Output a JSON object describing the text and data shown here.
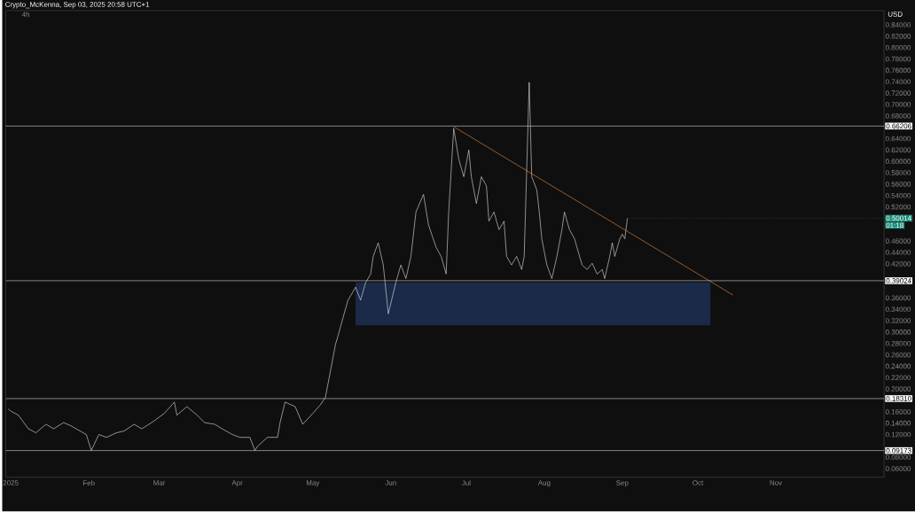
{
  "chart_data": {
    "type": "line",
    "title": "Crypto_McKenna, Sep 03, 2025 20:58 UTC+1",
    "subtitle": "4h",
    "ylabel": "USD",
    "xlim": [
      "2024-12-30",
      "2025-12-14"
    ],
    "xticks": [
      {
        "value": "2025-01-01",
        "label": "2025"
      },
      {
        "value": "2025-02-01",
        "label": "Feb"
      },
      {
        "value": "2025-03-01",
        "label": "Mar"
      },
      {
        "value": "2025-04-01",
        "label": "Apr"
      },
      {
        "value": "2025-05-01",
        "label": "May"
      },
      {
        "value": "2025-06-01",
        "label": "Jun"
      },
      {
        "value": "2025-07-01",
        "label": "Jul"
      },
      {
        "value": "2025-08-01",
        "label": "Aug"
      },
      {
        "value": "2025-09-01",
        "label": "Sep"
      },
      {
        "value": "2025-10-01",
        "label": "Oct"
      },
      {
        "value": "2025-11-01",
        "label": "Nov"
      }
    ],
    "ylim": [
      0.045,
      0.865
    ],
    "yticks": [
      {
        "value": 0.06,
        "label": "0.06000"
      },
      {
        "value": 0.08,
        "label": "0.08000"
      },
      {
        "value": 0.12,
        "label": "0.12000"
      },
      {
        "value": 0.14,
        "label": "0.14000"
      },
      {
        "value": 0.16,
        "label": "0.16000"
      },
      {
        "value": 0.2,
        "label": "0.20000"
      },
      {
        "value": 0.22,
        "label": "0.22000"
      },
      {
        "value": 0.24,
        "label": "0.24000"
      },
      {
        "value": 0.26,
        "label": "0.26000"
      },
      {
        "value": 0.28,
        "label": "0.28000"
      },
      {
        "value": 0.3,
        "label": "0.30000"
      },
      {
        "value": 0.32,
        "label": "0.32000"
      },
      {
        "value": 0.34,
        "label": "0.34000"
      },
      {
        "value": 0.36,
        "label": "0.36000"
      },
      {
        "value": 0.42,
        "label": "0.42000"
      },
      {
        "value": 0.44,
        "label": "0.44000"
      },
      {
        "value": 0.46,
        "label": "0.46000"
      },
      {
        "value": 0.52,
        "label": "0.52000"
      },
      {
        "value": 0.54,
        "label": "0.54000"
      },
      {
        "value": 0.56,
        "label": "0.56000"
      },
      {
        "value": 0.58,
        "label": "0.58000"
      },
      {
        "value": 0.6,
        "label": "0.60000"
      },
      {
        "value": 0.62,
        "label": "0.62000"
      },
      {
        "value": 0.64,
        "label": "0.64000"
      },
      {
        "value": 0.68,
        "label": "0.68000"
      },
      {
        "value": 0.7,
        "label": "0.70000"
      },
      {
        "value": 0.72,
        "label": "0.72000"
      },
      {
        "value": 0.74,
        "label": "0.74000"
      },
      {
        "value": 0.76,
        "label": "0.76000"
      },
      {
        "value": 0.78,
        "label": "0.78000"
      },
      {
        "value": 0.8,
        "label": "0.80000"
      },
      {
        "value": 0.82,
        "label": "0.82000"
      },
      {
        "value": 0.84,
        "label": "0.84000"
      }
    ],
    "ref_lines": [
      {
        "axis": "y",
        "value": 0.66206,
        "label": "0.66206",
        "color": "#d9d9d9"
      },
      {
        "axis": "y",
        "value": 0.39024,
        "label": "0.39024",
        "color": "#d9d9d9"
      },
      {
        "axis": "y",
        "value": 0.1831,
        "label": "0.18310",
        "color": "#d9d9d9"
      },
      {
        "axis": "y",
        "value": 0.09173,
        "label": "0.09173",
        "color": "#d9d9d9"
      }
    ],
    "annotations": [
      {
        "text": "0.50014",
        "x": "2025-09-03",
        "y": 0.50014
      },
      "01:18"
    ],
    "series": [
      {
        "type": "area",
        "color": "#1a2a48",
        "x": [
          "2025-05-18",
          "2025-10-06"
        ],
        "lower": [
          0.312,
          0.312
        ],
        "upper": [
          0.387,
          0.387
        ],
        "values": [
          null,
          null
        ]
      },
      {
        "color": "#e6e6e6",
        "x": [
          "2024-12-31",
          "2025-01-01",
          "2025-01-04",
          "2025-01-08",
          "2025-01-11",
          "2025-01-15",
          "2025-01-18",
          "2025-01-22",
          "2025-01-25",
          "2025-01-31",
          "2025-02-02",
          "2025-02-05",
          "2025-02-08",
          "2025-02-12",
          "2025-02-15",
          "2025-02-19",
          "2025-02-22",
          "2025-02-26",
          "2025-03-03",
          "2025-03-07",
          "2025-03-08",
          "2025-03-12",
          "2025-03-16",
          "2025-03-19",
          "2025-03-23",
          "2025-03-26",
          "2025-03-30",
          "2025-04-02",
          "2025-04-06",
          "2025-04-08",
          "2025-04-09",
          "2025-04-13",
          "2025-04-17",
          "2025-04-18",
          "2025-04-20",
          "2025-04-24",
          "2025-04-27",
          "2025-05-01",
          "2025-05-04",
          "2025-05-06",
          "2025-05-08",
          "2025-05-10",
          "2025-05-11",
          "2025-05-13",
          "2025-05-15",
          "2025-05-17",
          "2025-05-18",
          "2025-05-20",
          "2025-05-22",
          "2025-05-24",
          "2025-05-25",
          "2025-05-27",
          "2025-05-29",
          "2025-05-31",
          "2025-06-03",
          "2025-06-05",
          "2025-06-07",
          "2025-06-09",
          "2025-06-11",
          "2025-06-14",
          "2025-06-16",
          "2025-06-19",
          "2025-06-21",
          "2025-06-23",
          "2025-06-24",
          "2025-06-26",
          "2025-06-28",
          "2025-06-30",
          "2025-07-02",
          "2025-07-03",
          "2025-07-05",
          "2025-07-07",
          "2025-07-09",
          "2025-07-10",
          "2025-07-12",
          "2025-07-14",
          "2025-07-16",
          "2025-07-17",
          "2025-07-19",
          "2025-07-21",
          "2025-07-23",
          "2025-07-24",
          "2025-07-26",
          "2025-07-27",
          "2025-07-29",
          "2025-07-30",
          "2025-07-31",
          "2025-08-02",
          "2025-08-04",
          "2025-08-06",
          "2025-08-08",
          "2025-08-09",
          "2025-08-11",
          "2025-08-13",
          "2025-08-15",
          "2025-08-16",
          "2025-08-18",
          "2025-08-20",
          "2025-08-22",
          "2025-08-24",
          "2025-08-25",
          "2025-08-27",
          "2025-08-28",
          "2025-08-29",
          "2025-08-31",
          "2025-09-01",
          "2025-09-02",
          "2025-09-03"
        ],
        "values": [
          0.165,
          0.161,
          0.154,
          0.13,
          0.123,
          0.138,
          0.13,
          0.141,
          0.135,
          0.12,
          0.092,
          0.12,
          0.115,
          0.123,
          0.126,
          0.138,
          0.13,
          0.141,
          0.157,
          0.177,
          0.154,
          0.169,
          0.154,
          0.141,
          0.138,
          0.13,
          0.12,
          0.115,
          0.115,
          0.092,
          0.099,
          0.115,
          0.115,
          0.141,
          0.177,
          0.169,
          0.138,
          0.157,
          0.172,
          0.185,
          0.231,
          0.278,
          0.293,
          0.325,
          0.356,
          0.371,
          0.379,
          0.356,
          0.387,
          0.402,
          0.433,
          0.457,
          0.418,
          0.332,
          0.387,
          0.418,
          0.394,
          0.433,
          0.511,
          0.542,
          0.488,
          0.449,
          0.433,
          0.402,
          0.511,
          0.658,
          0.604,
          0.573,
          0.62,
          0.573,
          0.526,
          0.573,
          0.557,
          0.495,
          0.511,
          0.48,
          0.495,
          0.433,
          0.418,
          0.433,
          0.41,
          0.433,
          0.739,
          0.573,
          0.55,
          0.511,
          0.464,
          0.418,
          0.394,
          0.433,
          0.48,
          0.511,
          0.48,
          0.464,
          0.433,
          0.418,
          0.41,
          0.421,
          0.402,
          0.41,
          0.394,
          0.433,
          0.457,
          0.433,
          0.464,
          0.472,
          0.464,
          0.5
        ]
      },
      {
        "type": "line",
        "color": "#f0904a",
        "x": [
          "2025-06-26",
          "2025-10-15"
        ],
        "values": [
          0.661,
          0.365
        ]
      }
    ]
  }
}
